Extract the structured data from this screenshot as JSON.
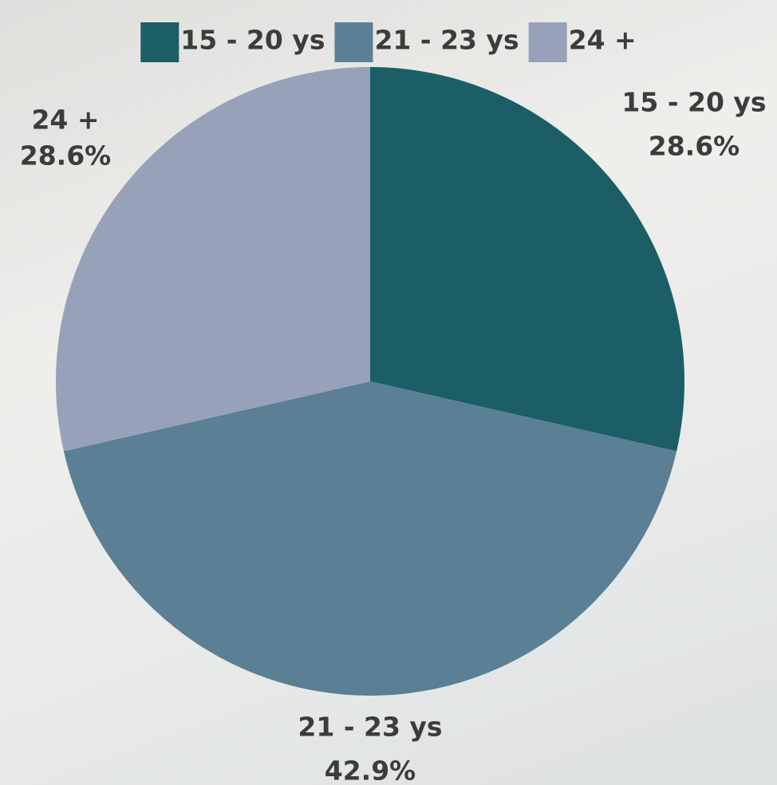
{
  "chart_data": {
    "type": "pie",
    "categories": [
      "15 - 20 ys",
      "21 - 23 ys",
      "24 +"
    ],
    "values": [
      28.6,
      42.9,
      28.6
    ],
    "value_labels": [
      "28.6%",
      "42.9%",
      "28.6%"
    ],
    "colors": [
      "#1b5e66",
      "#5b7f94",
      "#97a2ba"
    ],
    "legend": "top"
  }
}
